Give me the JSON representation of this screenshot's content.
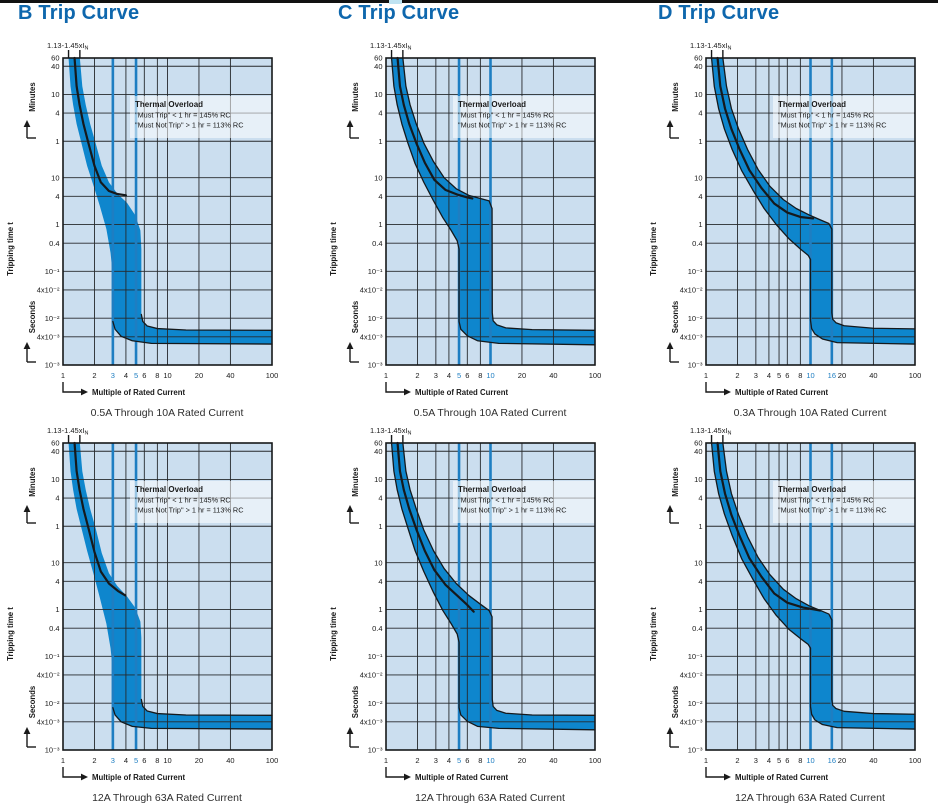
{
  "page": {
    "columns": [
      "B Trip Curve",
      "C Trip Curve",
      "D Trip Curve"
    ]
  },
  "colors": {
    "title_blue": "#0e67ad",
    "plot_bg": "#cbdeef",
    "grid": "#26292c",
    "border": "#16181a",
    "band_fill": "#0e86cd",
    "highlight_line": "#1e7ec2",
    "highlight_label": "#1e7ec2",
    "curve_line": "#15191c",
    "tick_text": "#1a1a1a",
    "caption_text": "#2e2e2e",
    "thermal_box_fill": "rgba(255,255,255,0.55)"
  },
  "axis_common": {
    "x_label": "Multiple of Rated Current",
    "y_label": "Tripping time t",
    "y_minutes": "Minutes",
    "y_seconds": "Seconds",
    "top_label": "1.13-1.45xI",
    "top_label_sub": "N",
    "top_ticks": [
      1.13,
      1.45
    ],
    "x_scale": "log",
    "y_scale": "log",
    "x_range": [
      1,
      100
    ],
    "t_range_seconds": [
      3600,
      0.001
    ],
    "y_ticks": [
      {
        "t": 3600,
        "label": "60"
      },
      {
        "t": 2400,
        "label": "40"
      },
      {
        "t": 600,
        "label": "10"
      },
      {
        "t": 240,
        "label": "4"
      },
      {
        "t": 60,
        "label": "1"
      },
      {
        "t": 10,
        "label": "10"
      },
      {
        "t": 4,
        "label": "4"
      },
      {
        "t": 1,
        "label": "1"
      },
      {
        "t": 0.4,
        "label": "0.4"
      },
      {
        "t": 0.1,
        "label": "10⁻¹"
      },
      {
        "t": 0.04,
        "label": "4x10⁻²"
      },
      {
        "t": 0.01,
        "label": "10⁻²"
      },
      {
        "t": 0.004,
        "label": "4x10⁻³"
      },
      {
        "t": 0.001,
        "label": "10⁻³"
      }
    ]
  },
  "thermal_box": {
    "title": "Thermal Overload",
    "line1": "\"Must Trip\" < 1 hr = 145% RC",
    "line2": "\"Must Not Trip\" > 1 hr = 113% RC"
  },
  "chart_data": [
    {
      "type": "area",
      "title": "B Trip Curve",
      "caption": "0.5A Through 10A Rated Current",
      "column": "B",
      "row": 0,
      "x_ticks": [
        1,
        2,
        3,
        4,
        5,
        6,
        8,
        10,
        20,
        40,
        100
      ],
      "highlight_x": [
        3,
        5
      ],
      "outline_thermal": false,
      "band_upper": [
        [
          1.45,
          3600
        ],
        [
          1.53,
          900
        ],
        [
          1.65,
          360
        ],
        [
          1.82,
          140
        ],
        [
          2.05,
          55
        ],
        [
          2.35,
          18
        ],
        [
          2.75,
          8
        ],
        [
          3.3,
          4.6
        ],
        [
          4.1,
          2.9
        ],
        [
          4.9,
          1.6
        ],
        [
          5.5,
          0.75
        ],
        [
          5.62,
          0.3
        ],
        [
          5.62,
          0.012
        ],
        [
          5.8,
          0.0085
        ],
        [
          6.4,
          0.0068
        ],
        [
          8,
          0.006
        ],
        [
          15,
          0.0056
        ],
        [
          100,
          0.0055
        ]
      ],
      "band_lower": [
        [
          1.13,
          3600
        ],
        [
          1.18,
          900
        ],
        [
          1.25,
          360
        ],
        [
          1.35,
          140
        ],
        [
          1.5,
          55
        ],
        [
          1.7,
          18
        ],
        [
          1.95,
          7
        ],
        [
          2.25,
          2.5
        ],
        [
          2.6,
          0.8
        ],
        [
          2.85,
          0.25
        ],
        [
          3.0,
          0.08
        ],
        [
          3.0,
          0.0085
        ],
        [
          3.15,
          0.0058
        ],
        [
          3.6,
          0.0041
        ],
        [
          4.6,
          0.0033
        ],
        [
          7,
          0.0029
        ],
        [
          100,
          0.0028
        ]
      ],
      "center_line": [
        [
          1.29,
          3600
        ],
        [
          1.35,
          900
        ],
        [
          1.44,
          360
        ],
        [
          1.57,
          140
        ],
        [
          1.75,
          55
        ],
        [
          2.0,
          18
        ],
        [
          2.3,
          8
        ],
        [
          2.75,
          5.2
        ],
        [
          3.3,
          4.5
        ],
        [
          4.0,
          4.2
        ]
      ]
    },
    {
      "type": "area",
      "title": "C Trip Curve",
      "caption": "0.5A Through 10A Rated Current",
      "column": "C",
      "row": 0,
      "x_ticks": [
        1,
        2,
        3,
        4,
        5,
        6,
        8,
        10,
        20,
        40,
        100
      ],
      "highlight_x": [
        5,
        10
      ],
      "outline_thermal": true,
      "band_upper": [
        [
          1.45,
          3600
        ],
        [
          1.55,
          900
        ],
        [
          1.7,
          360
        ],
        [
          1.95,
          140
        ],
        [
          2.3,
          55
        ],
        [
          2.85,
          22
        ],
        [
          3.6,
          10
        ],
        [
          4.7,
          5.8
        ],
        [
          6.2,
          4.2
        ],
        [
          8,
          3.6
        ],
        [
          9.7,
          3.2
        ],
        [
          10.35,
          2.2
        ],
        [
          10.4,
          0.013
        ],
        [
          10.6,
          0.0088
        ],
        [
          11.5,
          0.0072
        ],
        [
          14,
          0.0062
        ],
        [
          25,
          0.0057
        ],
        [
          100,
          0.0055
        ]
      ],
      "band_lower": [
        [
          1.13,
          3600
        ],
        [
          1.19,
          900
        ],
        [
          1.28,
          360
        ],
        [
          1.42,
          140
        ],
        [
          1.62,
          55
        ],
        [
          1.9,
          20
        ],
        [
          2.3,
          8
        ],
        [
          2.85,
          3.2
        ],
        [
          3.5,
          1.4
        ],
        [
          4.2,
          0.75
        ],
        [
          4.8,
          0.45
        ],
        [
          5.0,
          0.3
        ],
        [
          5.0,
          0.0085
        ],
        [
          5.2,
          0.0058
        ],
        [
          6.0,
          0.0042
        ],
        [
          7.5,
          0.0033
        ],
        [
          12,
          0.0029
        ],
        [
          100,
          0.0027
        ]
      ],
      "center_line": [
        [
          1.29,
          3600
        ],
        [
          1.36,
          900
        ],
        [
          1.48,
          360
        ],
        [
          1.67,
          140
        ],
        [
          1.95,
          55
        ],
        [
          2.35,
          21
        ],
        [
          2.9,
          9
        ],
        [
          3.7,
          5.5
        ],
        [
          4.9,
          4.3
        ],
        [
          6.0,
          3.8
        ],
        [
          6.7,
          3.6
        ]
      ]
    },
    {
      "type": "area",
      "title": "D Trip Curve",
      "caption": "0.3A Through 10A Rated Current",
      "column": "D",
      "row": 0,
      "x_ticks": [
        1,
        2,
        3,
        4,
        5,
        6,
        8,
        10,
        16,
        20,
        40,
        100
      ],
      "highlight_x": [
        10,
        16
      ],
      "outline_thermal": true,
      "band_upper": [
        [
          1.45,
          3600
        ],
        [
          1.57,
          900
        ],
        [
          1.75,
          300
        ],
        [
          2.05,
          110
        ],
        [
          2.5,
          40
        ],
        [
          3.15,
          15
        ],
        [
          4.1,
          6.5
        ],
        [
          5.5,
          3.4
        ],
        [
          7.3,
          2.2
        ],
        [
          9.7,
          1.6
        ],
        [
          12.5,
          1.25
        ],
        [
          15,
          1.05
        ],
        [
          16,
          0.8
        ],
        [
          16,
          0.013
        ],
        [
          16.3,
          0.0095
        ],
        [
          17.5,
          0.008
        ],
        [
          21,
          0.0069
        ],
        [
          40,
          0.0061
        ],
        [
          100,
          0.0059
        ]
      ],
      "band_lower": [
        [
          1.13,
          3600
        ],
        [
          1.2,
          900
        ],
        [
          1.32,
          300
        ],
        [
          1.5,
          110
        ],
        [
          1.78,
          40
        ],
        [
          2.2,
          14
        ],
        [
          2.8,
          5.5
        ],
        [
          3.6,
          2.2
        ],
        [
          4.7,
          1.0
        ],
        [
          6.2,
          0.5
        ],
        [
          8.0,
          0.3
        ],
        [
          9.5,
          0.22
        ],
        [
          10.0,
          0.18
        ],
        [
          10.0,
          0.009
        ],
        [
          10.25,
          0.006
        ],
        [
          11,
          0.0046
        ],
        [
          13,
          0.0036
        ],
        [
          18,
          0.003
        ],
        [
          100,
          0.0028
        ]
      ],
      "center_line": [
        [
          1.29,
          3600
        ],
        [
          1.37,
          900
        ],
        [
          1.52,
          300
        ],
        [
          1.75,
          110
        ],
        [
          2.1,
          40
        ],
        [
          2.6,
          14.5
        ],
        [
          3.4,
          6
        ],
        [
          4.5,
          2.8
        ],
        [
          6.0,
          1.8
        ],
        [
          8.0,
          1.45
        ],
        [
          10.6,
          1.35
        ]
      ]
    },
    {
      "type": "area",
      "title": "B Trip Curve",
      "caption": "12A Through 63A Rated Current",
      "column": "B",
      "row": 1,
      "x_ticks": [
        1,
        2,
        3,
        4,
        5,
        6,
        8,
        10,
        20,
        40,
        100
      ],
      "highlight_x": [
        3,
        5
      ],
      "outline_thermal": false,
      "band_upper": [
        [
          1.45,
          3600
        ],
        [
          1.53,
          900
        ],
        [
          1.65,
          360
        ],
        [
          1.82,
          140
        ],
        [
          2.05,
          55
        ],
        [
          2.35,
          16
        ],
        [
          2.75,
          6
        ],
        [
          3.3,
          3.2
        ],
        [
          4.1,
          1.9
        ],
        [
          4.9,
          1.1
        ],
        [
          5.5,
          0.55
        ],
        [
          5.62,
          0.25
        ],
        [
          5.62,
          0.012
        ],
        [
          5.8,
          0.0085
        ],
        [
          6.4,
          0.0068
        ],
        [
          8,
          0.006
        ],
        [
          15,
          0.0056
        ],
        [
          100,
          0.0055
        ]
      ],
      "band_lower": [
        [
          1.13,
          3600
        ],
        [
          1.18,
          900
        ],
        [
          1.25,
          360
        ],
        [
          1.35,
          140
        ],
        [
          1.5,
          55
        ],
        [
          1.7,
          18
        ],
        [
          1.95,
          6
        ],
        [
          2.25,
          1.8
        ],
        [
          2.6,
          0.5
        ],
        [
          2.85,
          0.15
        ],
        [
          3.0,
          0.05
        ],
        [
          3.0,
          0.008
        ],
        [
          3.15,
          0.0056
        ],
        [
          3.6,
          0.004
        ],
        [
          4.6,
          0.0032
        ],
        [
          7,
          0.0029
        ],
        [
          100,
          0.0028
        ]
      ],
      "center_line": [
        [
          1.29,
          3600
        ],
        [
          1.35,
          900
        ],
        [
          1.44,
          360
        ],
        [
          1.57,
          140
        ],
        [
          1.75,
          55
        ],
        [
          2.0,
          17
        ],
        [
          2.3,
          6.5
        ],
        [
          2.75,
          3.6
        ],
        [
          3.35,
          2.5
        ],
        [
          3.95,
          2.0
        ]
      ]
    },
    {
      "type": "area",
      "title": "C Trip Curve",
      "caption": "12A Through 63A Rated Current",
      "column": "C",
      "row": 1,
      "x_ticks": [
        1,
        2,
        3,
        4,
        5,
        6,
        8,
        10,
        20,
        40,
        100
      ],
      "highlight_x": [
        5,
        10
      ],
      "outline_thermal": true,
      "band_upper": [
        [
          1.45,
          3600
        ],
        [
          1.55,
          900
        ],
        [
          1.7,
          360
        ],
        [
          1.95,
          140
        ],
        [
          2.3,
          50
        ],
        [
          2.85,
          18
        ],
        [
          3.6,
          7.5
        ],
        [
          4.7,
          3.6
        ],
        [
          6.2,
          2.0
        ],
        [
          8,
          1.3
        ],
        [
          9.7,
          0.95
        ],
        [
          10.35,
          0.7
        ],
        [
          10.4,
          0.012
        ],
        [
          10.6,
          0.0085
        ],
        [
          11.5,
          0.007
        ],
        [
          14,
          0.0061
        ],
        [
          25,
          0.0056
        ],
        [
          100,
          0.0055
        ]
      ],
      "band_lower": [
        [
          1.13,
          3600
        ],
        [
          1.19,
          900
        ],
        [
          1.28,
          360
        ],
        [
          1.42,
          140
        ],
        [
          1.62,
          55
        ],
        [
          1.9,
          18
        ],
        [
          2.3,
          6.5
        ],
        [
          2.85,
          2.3
        ],
        [
          3.5,
          0.95
        ],
        [
          4.2,
          0.5
        ],
        [
          4.8,
          0.3
        ],
        [
          5.0,
          0.2
        ],
        [
          5.0,
          0.008
        ],
        [
          5.2,
          0.0056
        ],
        [
          6.0,
          0.0041
        ],
        [
          7.5,
          0.0032
        ],
        [
          12,
          0.0029
        ],
        [
          100,
          0.0027
        ]
      ],
      "center_line": [
        [
          1.29,
          3600
        ],
        [
          1.36,
          900
        ],
        [
          1.48,
          360
        ],
        [
          1.67,
          140
        ],
        [
          1.95,
          52
        ],
        [
          2.35,
          18
        ],
        [
          2.9,
          7
        ],
        [
          3.7,
          3.4
        ],
        [
          4.9,
          1.9
        ],
        [
          6.0,
          1.25
        ],
        [
          6.9,
          0.9
        ]
      ]
    },
    {
      "type": "area",
      "title": "D Trip Curve",
      "caption": "12A Through 63A Rated Current",
      "column": "D",
      "row": 1,
      "x_ticks": [
        1,
        2,
        3,
        4,
        5,
        6,
        8,
        10,
        16,
        20,
        40,
        100
      ],
      "highlight_x": [
        10,
        16
      ],
      "outline_thermal": true,
      "band_upper": [
        [
          1.45,
          3600
        ],
        [
          1.57,
          900
        ],
        [
          1.75,
          300
        ],
        [
          2.05,
          105
        ],
        [
          2.5,
          36
        ],
        [
          3.15,
          13
        ],
        [
          4.1,
          5.5
        ],
        [
          5.5,
          2.7
        ],
        [
          7.3,
          1.7
        ],
        [
          9.7,
          1.2
        ],
        [
          12.5,
          0.95
        ],
        [
          15,
          0.8
        ],
        [
          16,
          0.6
        ],
        [
          16,
          0.012
        ],
        [
          16.3,
          0.009
        ],
        [
          17.5,
          0.0077
        ],
        [
          21,
          0.0067
        ],
        [
          40,
          0.006
        ],
        [
          100,
          0.0058
        ]
      ],
      "band_lower": [
        [
          1.13,
          3600
        ],
        [
          1.2,
          900
        ],
        [
          1.32,
          300
        ],
        [
          1.5,
          110
        ],
        [
          1.78,
          38
        ],
        [
          2.2,
          12
        ],
        [
          2.8,
          4.5
        ],
        [
          3.6,
          1.7
        ],
        [
          4.7,
          0.75
        ],
        [
          6.2,
          0.38
        ],
        [
          8.0,
          0.24
        ],
        [
          9.5,
          0.18
        ],
        [
          10.0,
          0.15
        ],
        [
          10.0,
          0.0085
        ],
        [
          10.25,
          0.0058
        ],
        [
          11,
          0.0044
        ],
        [
          13,
          0.0035
        ],
        [
          18,
          0.003
        ],
        [
          100,
          0.0028
        ]
      ],
      "center_line": [
        [
          1.29,
          3600
        ],
        [
          1.37,
          900
        ],
        [
          1.52,
          300
        ],
        [
          1.75,
          105
        ],
        [
          2.1,
          37
        ],
        [
          2.6,
          12.5
        ],
        [
          3.4,
          5
        ],
        [
          4.5,
          2.2
        ],
        [
          6.0,
          1.4
        ],
        [
          8.5,
          1.1
        ],
        [
          11.0,
          1.0
        ],
        [
          12.4,
          0.95
        ]
      ]
    }
  ]
}
